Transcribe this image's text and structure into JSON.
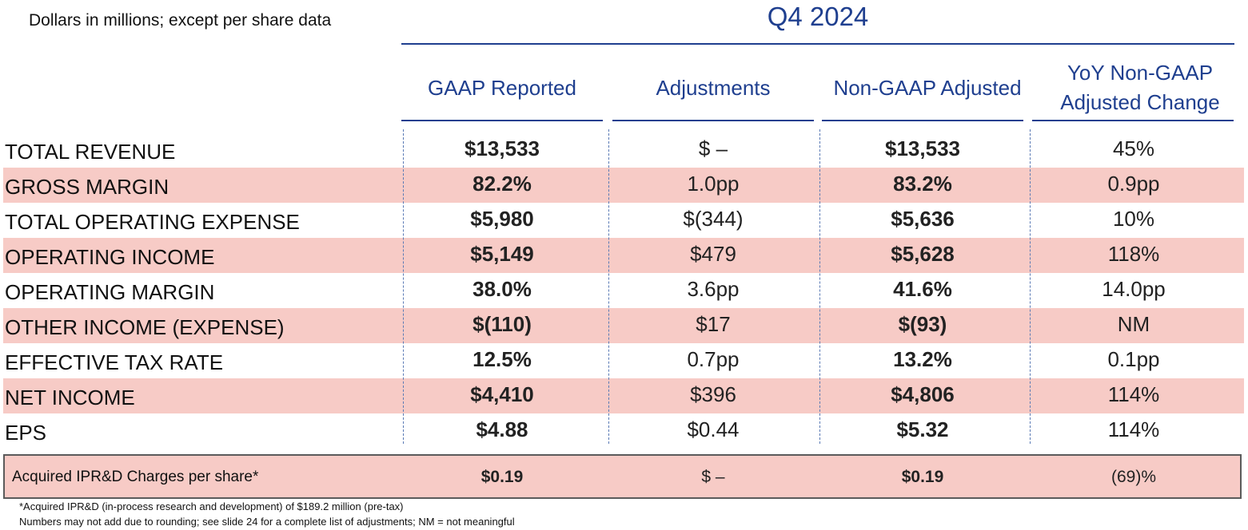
{
  "header": {
    "subtitle": "Dollars in millions; except per share data",
    "period": "Q4 2024"
  },
  "columns": [
    "GAAP Reported",
    "Adjustments",
    "Non-GAAP Adjusted",
    "YoY Non-GAAP Adjusted Change"
  ],
  "rows": [
    {
      "label": "TOTAL REVENUE",
      "gaap": "$13,533",
      "adj": "$ –",
      "nongaap": "$13,533",
      "yoy": "45%"
    },
    {
      "label": "GROSS MARGIN",
      "gaap": "82.2%",
      "adj": "1.0pp",
      "nongaap": "83.2%",
      "yoy": "0.9pp"
    },
    {
      "label": "TOTAL OPERATING EXPENSE",
      "gaap": "$5,980",
      "adj": "$(344)",
      "nongaap": "$5,636",
      "yoy": "10%"
    },
    {
      "label": "OPERATING INCOME",
      "gaap": "$5,149",
      "adj": "$479",
      "nongaap": "$5,628",
      "yoy": "118%"
    },
    {
      "label": "OPERATING MARGIN",
      "gaap": "38.0%",
      "adj": "3.6pp",
      "nongaap": "41.6%",
      "yoy": "14.0pp"
    },
    {
      "label": "OTHER INCOME (EXPENSE)",
      "gaap": "$(110)",
      "adj": "$17",
      "nongaap": "$(93)",
      "yoy": "NM"
    },
    {
      "label": "EFFECTIVE TAX RATE",
      "gaap": "12.5%",
      "adj": "0.7pp",
      "nongaap": "13.2%",
      "yoy": "0.1pp"
    },
    {
      "label": "NET INCOME",
      "gaap": "$4,410",
      "adj": "$396",
      "nongaap": "$4,806",
      "yoy": "114%"
    },
    {
      "label": "EPS",
      "gaap": "$4.88",
      "adj": "$0.44",
      "nongaap": "$5.32",
      "yoy": "114%"
    }
  ],
  "ipr": {
    "label": "Acquired IPR&D Charges per share*",
    "gaap": "$0.19",
    "adj": "$ –",
    "nongaap": "$0.19",
    "yoy": "(69)%"
  },
  "footnotes": [
    "*Acquired IPR&D (in-process research and development) of $189.2 million (pre-tax)",
    "Numbers may not add due to rounding; see slide 24 for a complete list of adjustments; NM = not meaningful"
  ],
  "colors": {
    "accent": "#1f3f8f",
    "row_shade": "#f7cbc6"
  }
}
